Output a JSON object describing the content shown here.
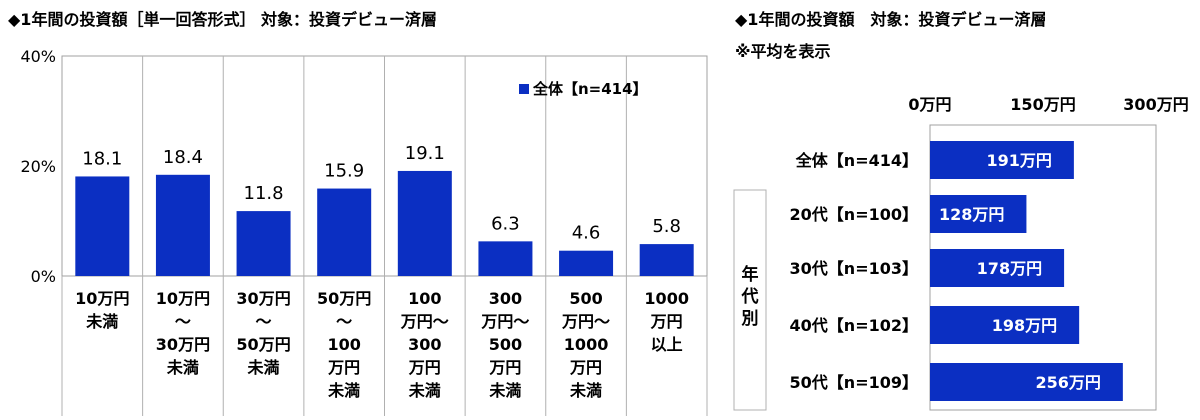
{
  "left_title": "◆1年間の投資額［単一回答形式］ 対象：投資デビュー済層",
  "right_title": "◆1年間の投資額　対象：投資デビュー済層",
  "right_subtitle": "※平均を表示",
  "bar_color": "#0b2fc2",
  "chart_data": [
    {
      "type": "bar",
      "title": "◆1年間の投資額［単一回答形式］ 対象：投資デビュー済層",
      "categories": [
        [
          "10万円",
          "未満"
        ],
        [
          "10万円",
          "～",
          "30万円",
          "未満"
        ],
        [
          "30万円",
          "～",
          "50万円",
          "未満"
        ],
        [
          "50万円",
          "～",
          "100",
          "万円",
          "未満"
        ],
        [
          "100",
          "万円～",
          "300",
          "万円",
          "未満"
        ],
        [
          "300",
          "万円～",
          "500",
          "万円",
          "未満"
        ],
        [
          "500",
          "万円～",
          "1000",
          "万円",
          "未満"
        ],
        [
          "1000",
          "万円",
          "以上"
        ]
      ],
      "series": [
        {
          "name": "全体【n=414】",
          "values": [
            18.1,
            18.4,
            11.8,
            15.9,
            19.1,
            6.3,
            4.6,
            5.8
          ]
        }
      ],
      "value_labels": [
        "18.1",
        "18.4",
        "11.8",
        "15.9",
        "19.1",
        "6.3",
        "4.6",
        "5.8"
      ],
      "yticks": [
        "0%",
        "20%",
        "40%"
      ],
      "ylim": [
        0,
        40
      ],
      "legend": "top-right",
      "grid": false
    },
    {
      "type": "bar",
      "orientation": "horizontal",
      "title": "◆1年間の投資額　対象：投資デビュー済層",
      "subtitle": "※平均を表示",
      "categories": [
        "全体【n=414】",
        "20代【n=100】",
        "30代【n=103】",
        "40代【n=102】",
        "50代【n=109】"
      ],
      "group_label": [
        "年",
        "代",
        "別"
      ],
      "values": [
        191,
        128,
        178,
        198,
        256
      ],
      "value_labels": [
        "191万円",
        "128万円",
        "178万円",
        "198万円",
        "256万円"
      ],
      "xticks": [
        "0万円",
        "150万円",
        "300万円"
      ],
      "xlim": [
        0,
        300
      ],
      "grid": false
    }
  ]
}
